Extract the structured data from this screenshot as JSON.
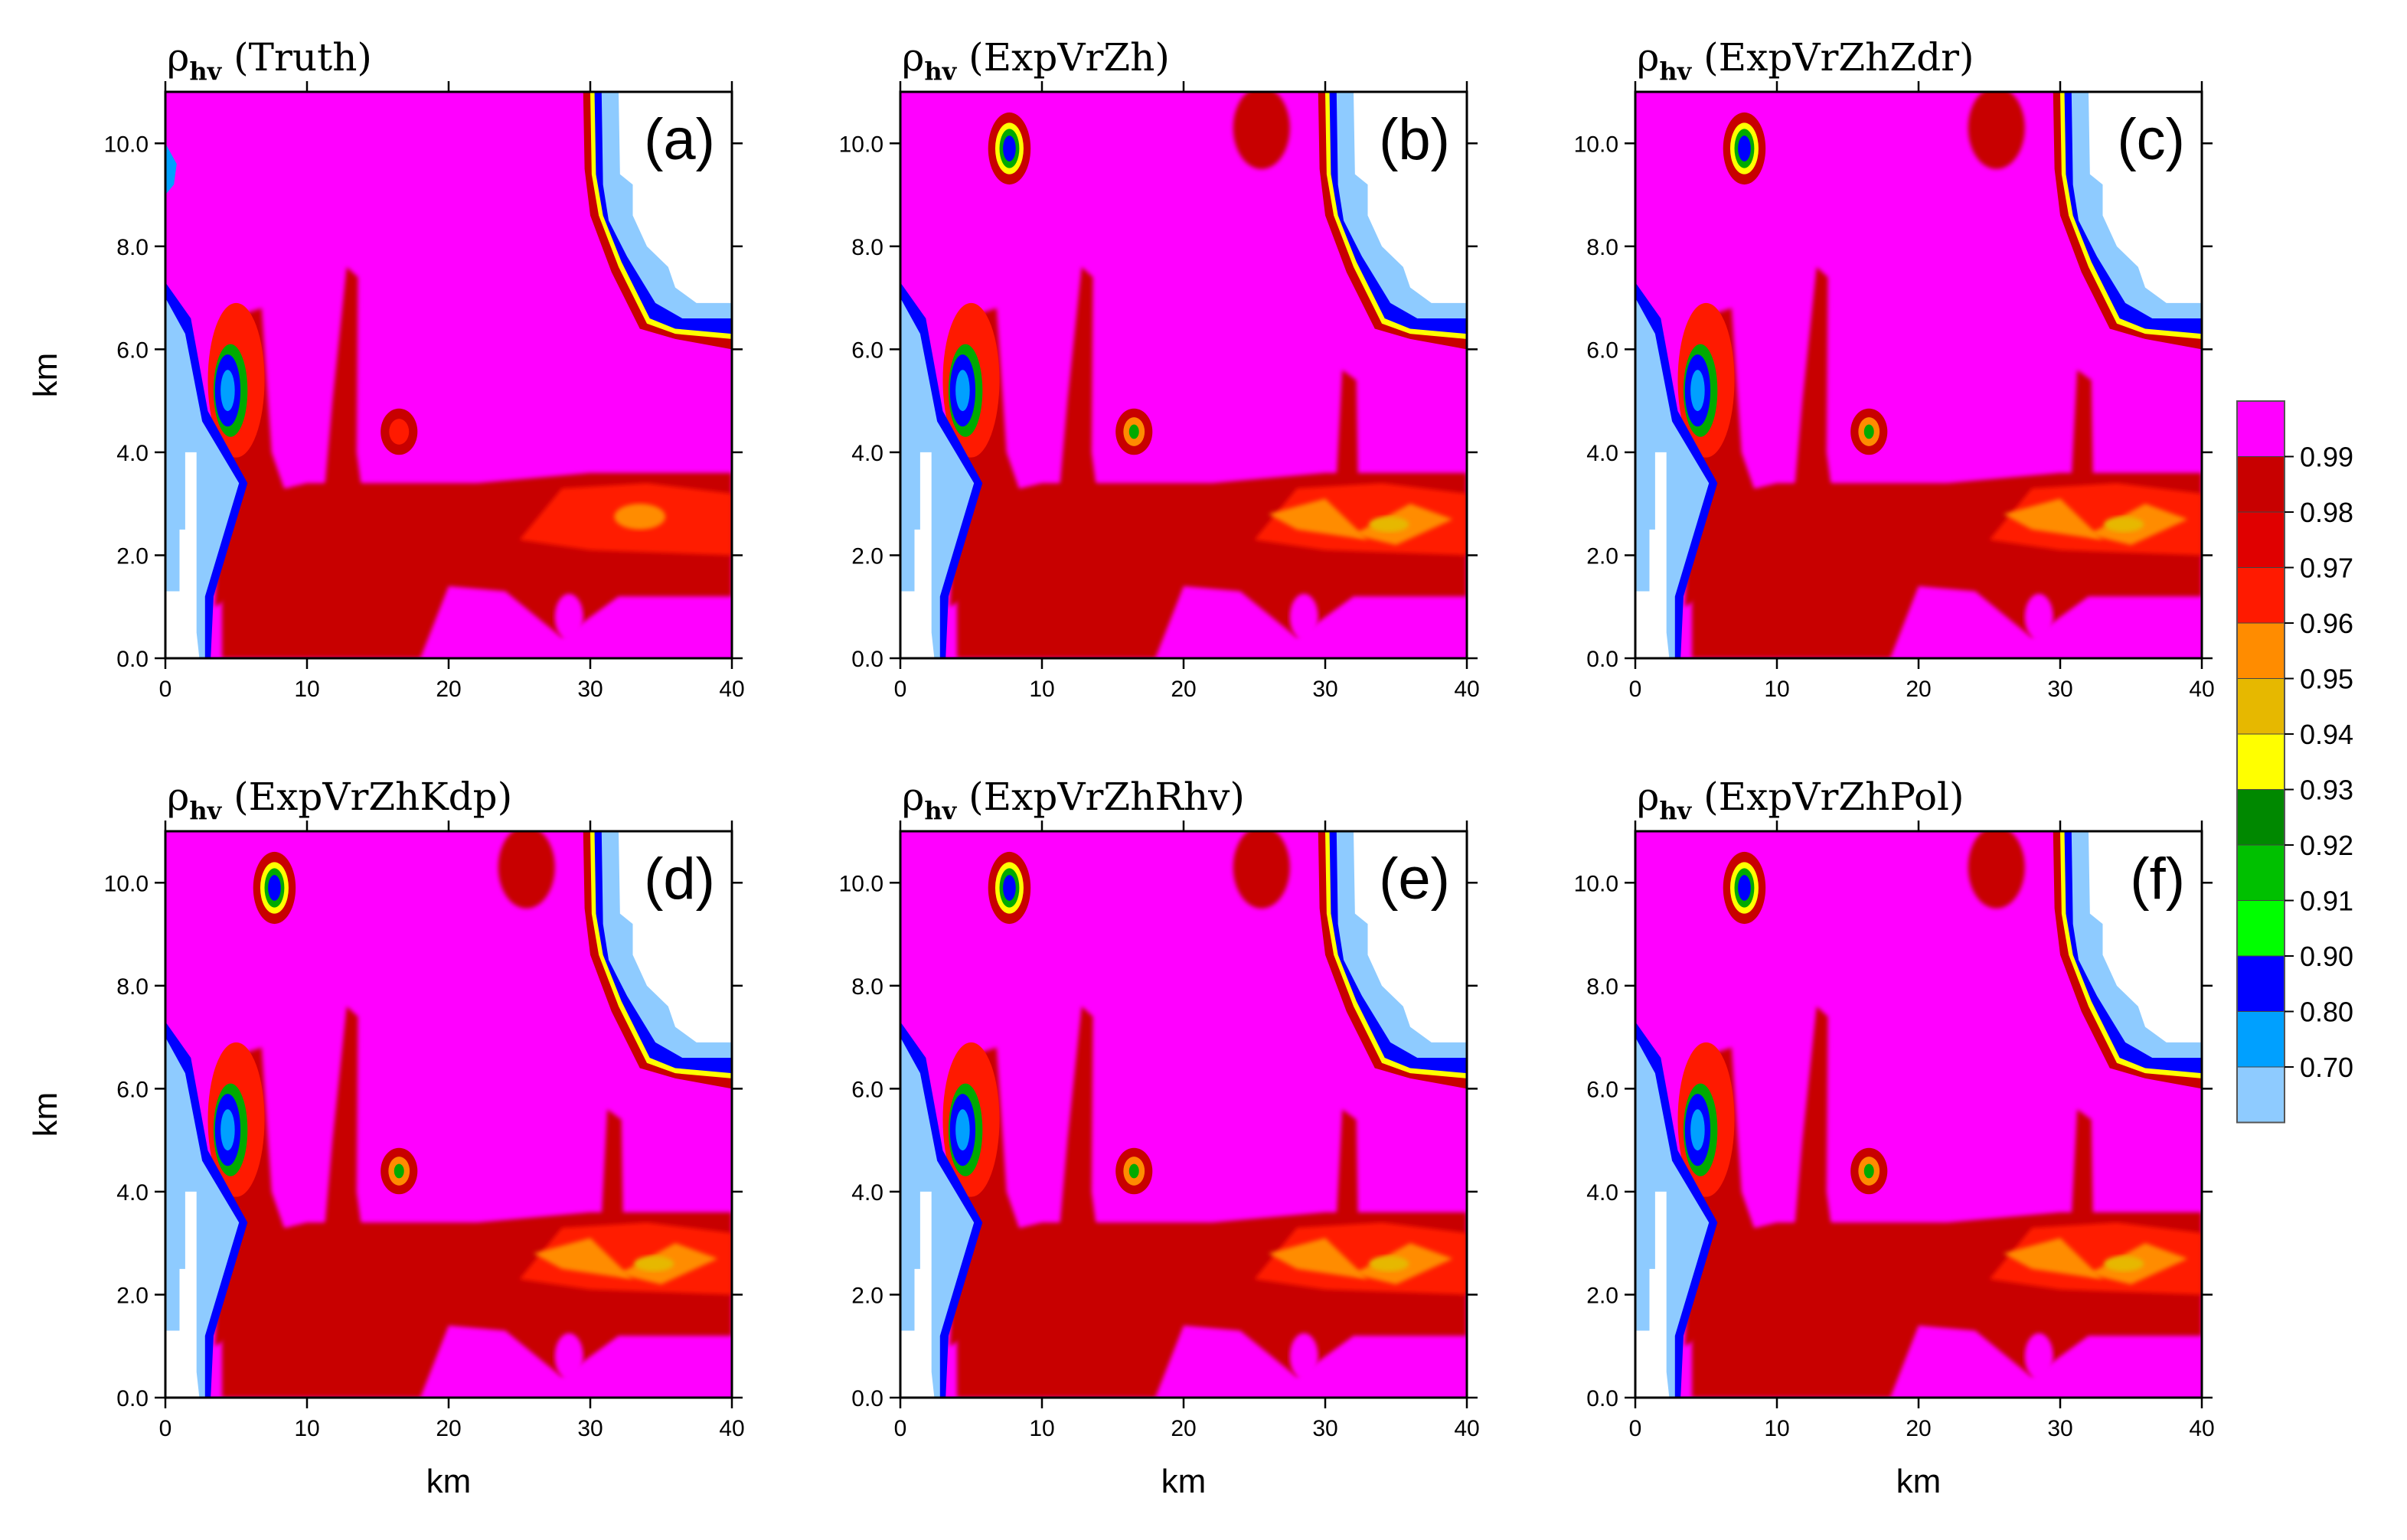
{
  "chart_data": {
    "type": "heatmap",
    "variable_symbol": "ρ",
    "variable_subscript": "hv",
    "xlabel": "km",
    "ylabel": "km",
    "xlim": [
      0,
      40
    ],
    "ylim": [
      0,
      11
    ],
    "x_ticks": [
      "0",
      "10",
      "20",
      "30",
      "40"
    ],
    "y_ticks": [
      "0.0",
      "2.0",
      "4.0",
      "6.0",
      "8.0",
      "10.0"
    ],
    "colors": {
      "background": "#ff00ff",
      "dark_red": "#c80000",
      "red": "#ff1a00",
      "orange": "#ff8c00",
      "gold": "#e6b800",
      "yellow": "#ffff00",
      "green": "#00aa00",
      "blue": "#0000ff",
      "light_blue": "#00a0ff",
      "pale_blue": "#8ecbff",
      "white": "#ffffff"
    },
    "panels": [
      {
        "exp": "(Truth)",
        "label": "(a)"
      },
      {
        "exp": "(ExpVrZh)",
        "label": "(b)"
      },
      {
        "exp": "(ExpVrZhZdr)",
        "label": "(c)"
      },
      {
        "exp": "(ExpVrZhKdp)",
        "label": "(d)"
      },
      {
        "exp": "(ExpVrZhRhv)",
        "label": "(e)"
      },
      {
        "exp": "(ExpVrZhPol)",
        "label": "(f)"
      }
    ],
    "colorbar": {
      "labels": [
        "0.99",
        "0.98",
        "0.97",
        "0.96",
        "0.95",
        "0.94",
        "0.93",
        "0.92",
        "0.91",
        "0.90",
        "0.80",
        "0.70"
      ],
      "colors": [
        "#ff00ff",
        "#c80000",
        "#e00000",
        "#ff1a00",
        "#ff8c00",
        "#e6b800",
        "#ffff00",
        "#008800",
        "#00c000",
        "#00ff00",
        "#0000ff",
        "#00a0ff",
        "#8ecbff"
      ]
    }
  }
}
